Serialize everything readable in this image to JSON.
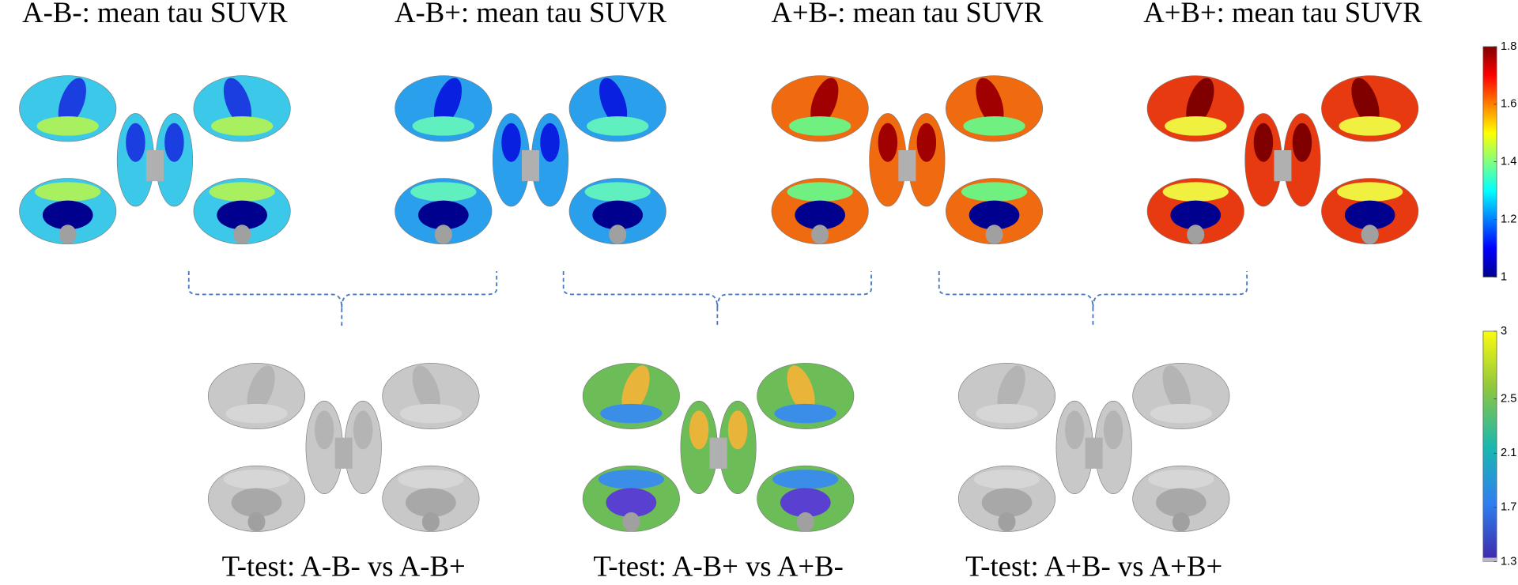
{
  "top_panels": [
    {
      "title": "A-B-: mean tau SUVR"
    },
    {
      "title": "A-B+: mean tau SUVR"
    },
    {
      "title": "A+B-: mean tau SUVR"
    },
    {
      "title": "A+B+: mean tau SUVR"
    }
  ],
  "bottom_panels": [
    {
      "title": "T-test: A-B- vs A-B+"
    },
    {
      "title": "T-test: A-B+ vs A+B-"
    },
    {
      "title": "T-test: A+B- vs A+B+"
    }
  ],
  "colorbars": [
    {
      "lim": [
        1,
        1.8
      ],
      "ticks": [
        1.8,
        1.6,
        1.4,
        1.2,
        1
      ]
    },
    {
      "lim": [
        1.3,
        3
      ],
      "ticks": [
        3,
        2.5,
        2.1,
        1.7,
        1.3
      ]
    }
  ]
}
